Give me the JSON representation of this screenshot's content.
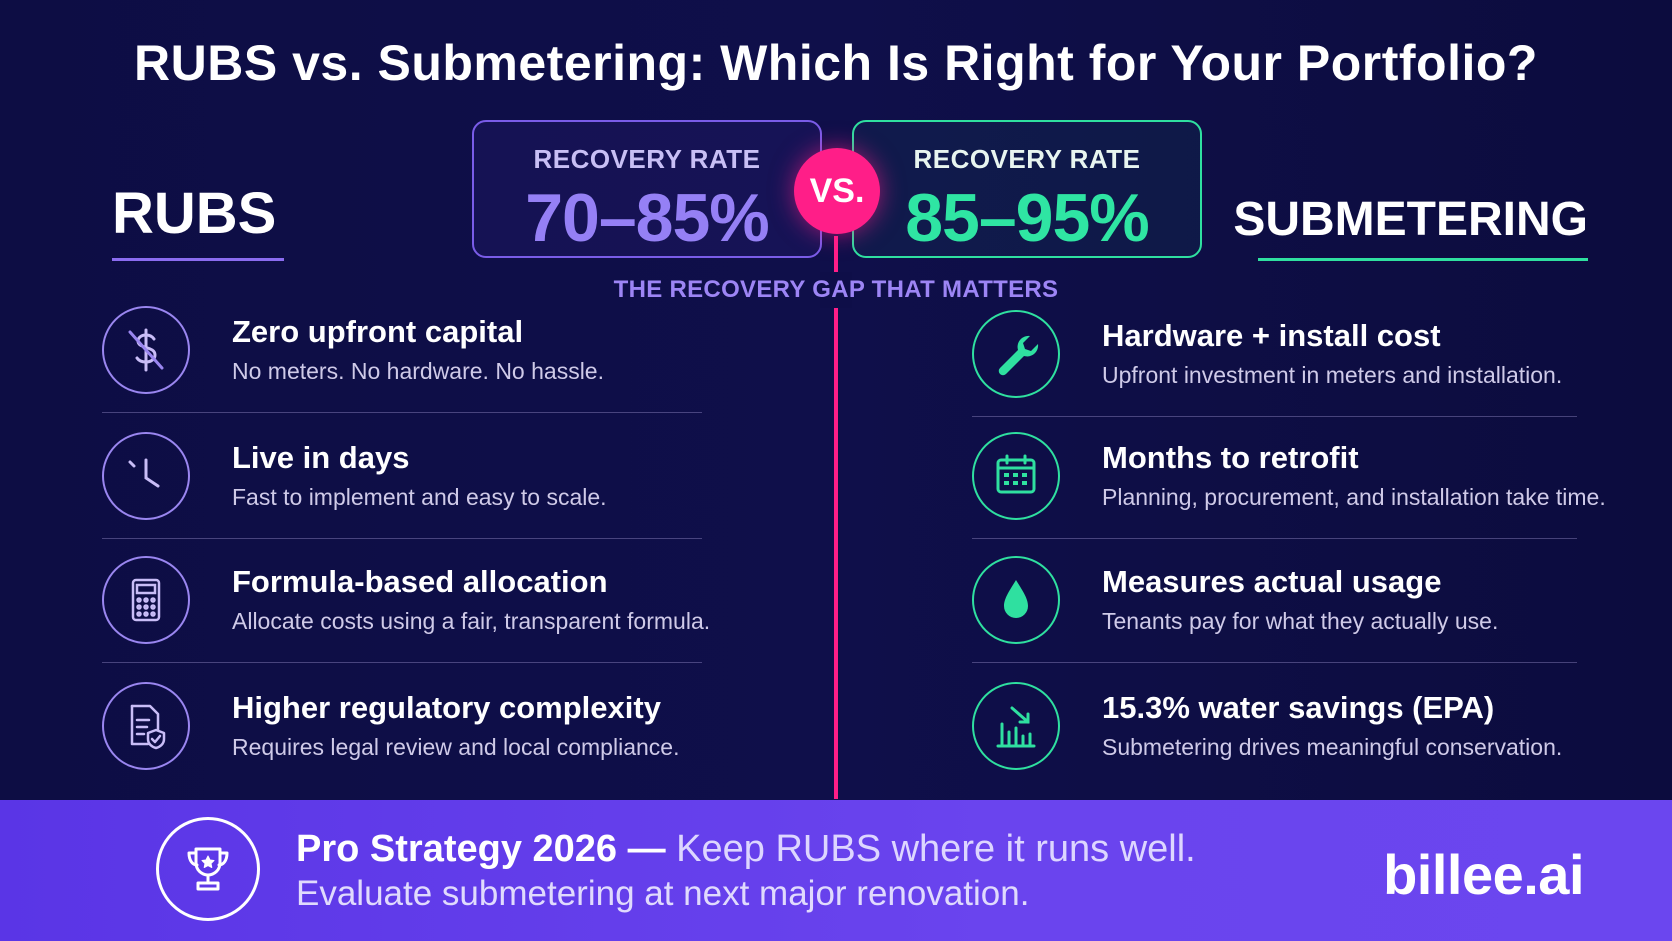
{
  "title": "RUBS vs. Submetering: Which Is Right for Your Portfolio?",
  "left": {
    "name": "RUBS",
    "rate_label": "RECOVERY RATE",
    "rate_value": "70–85%",
    "items": [
      {
        "icon": "no-dollar-icon",
        "head": "Zero upfront capital",
        "desc": "No meters. No hardware. No hassle."
      },
      {
        "icon": "clock-icon",
        "head": "Live in days",
        "desc": "Fast to implement and easy to scale."
      },
      {
        "icon": "calculator-icon",
        "head": "Formula-based allocation",
        "desc": "Allocate costs using a fair, transparent formula."
      },
      {
        "icon": "document-shield-icon",
        "head": "Higher regulatory complexity",
        "desc": "Requires legal review and local compliance."
      }
    ]
  },
  "right": {
    "name": "SUBMETERING",
    "rate_label": "RECOVERY RATE",
    "rate_value": "85–95%",
    "items": [
      {
        "icon": "wrench-icon",
        "head": "Hardware + install cost",
        "desc": "Upfront investment in meters and installation."
      },
      {
        "icon": "calendar-icon",
        "head": "Months to retrofit",
        "desc": "Planning, procurement, and installation take time."
      },
      {
        "icon": "water-drop-icon",
        "head": "Measures actual usage",
        "desc": "Tenants pay for what they actually use."
      },
      {
        "icon": "bar-chart-down-icon",
        "head": "15.3% water savings (EPA)",
        "desc": "Submetering drives meaningful conservation."
      }
    ]
  },
  "vs_label": "VS.",
  "gap_label": "THE RECOVERY GAP THAT MATTERS",
  "footer": {
    "icon": "trophy-icon",
    "strong": "Pro Strategy 2026 —",
    "soft": "Keep RUBS where it runs well.",
    "line2": "Evaluate submetering at next major renovation.",
    "brand": "billee.ai"
  },
  "colors": {
    "background": "#0d0d44",
    "rubs_accent": "#9580f5",
    "submeter_accent": "#2fe5a3",
    "vs_pink": "#ff1e88",
    "footer_purple": "#5a35e6"
  }
}
